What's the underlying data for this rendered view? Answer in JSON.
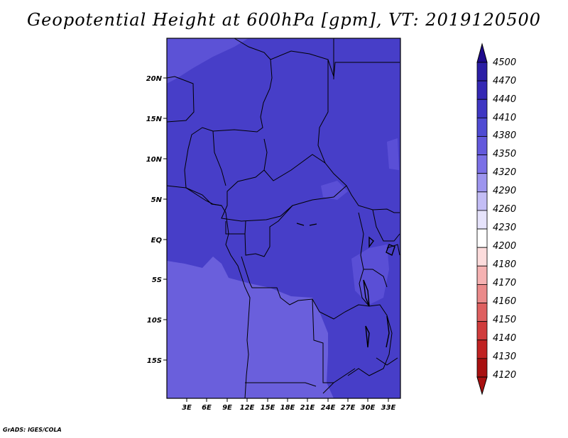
{
  "title": "Geopotential Height at 600hPa [gpm], VT: 2019120500",
  "credit": "GrADS: IGES/COLA",
  "map": {
    "lat_labels": [
      "20N",
      "15N",
      "10N",
      "5N",
      "EQ",
      "5S",
      "10S",
      "15S"
    ],
    "lon_labels": [
      "3E",
      "6E",
      "9E",
      "12E",
      "15E",
      "18E",
      "21E",
      "24E",
      "27E",
      "30E",
      "33E"
    ]
  },
  "colorbar": {
    "levels": [
      "4500",
      "4470",
      "4440",
      "4410",
      "4380",
      "4350",
      "4320",
      "4290",
      "4260",
      "4230",
      "4200",
      "4180",
      "4170",
      "4160",
      "4150",
      "4140",
      "4130",
      "4120"
    ],
    "colors": [
      "#1e0a8c",
      "#2b1ea5",
      "#3428b4",
      "#3f37c3",
      "#4f4bd3",
      "#6359dc",
      "#7b70e6",
      "#9d95ee",
      "#c3bdf5",
      "#e6e3fb",
      "#ffffff",
      "#fcdcdc",
      "#f5b2b2",
      "#ea8a8a",
      "#de6060",
      "#d03c3c",
      "#c02222",
      "#a81010"
    ],
    "field_colors": {
      "lowest": "#6f62df",
      "mid": "#5a4fd8",
      "main": "#473ec8"
    }
  }
}
